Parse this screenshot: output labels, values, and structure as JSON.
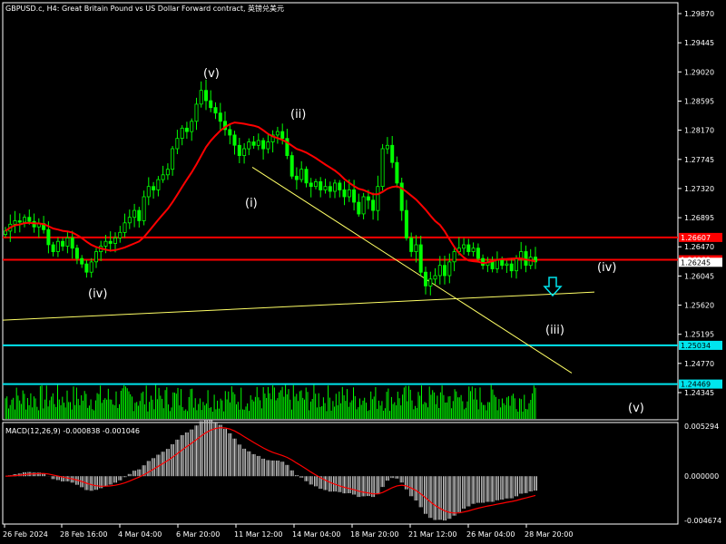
{
  "chart_title": "GBPUSD.c, H4:  Great Britain Pound vs US Dollar Forward contract, 英镑兑美元",
  "macd_label": "MACD(12,26,9)",
  "macd_values": "-0.000838 -0.001046",
  "colors": {
    "background": "#000000",
    "up_candle": "#00ff00",
    "down_candle": "#00ff00",
    "ma_line": "#ff0000",
    "resistance_line": "#ff0000",
    "support_line": "#00e5ee",
    "trend_line": "#ffff66",
    "macd_hist": "#c0c0c0",
    "macd_signal": "#ff0000",
    "axis_frame": "#ffffff",
    "arrow": "#00e5ee"
  },
  "chart_data": {
    "type": "candlestick",
    "symbol": "GBPUSD.c",
    "timeframe": "H4",
    "y_ticks": [
      "1.29870",
      "1.29445",
      "1.29020",
      "1.28595",
      "1.28170",
      "1.27745",
      "1.27320",
      "1.26895",
      "1.26470",
      "1.26045",
      "1.25620",
      "1.25195",
      "1.24770",
      "1.24345"
    ],
    "ylim": [
      1.2412,
      1.299
    ],
    "x_ticks": [
      "26 Feb 2024",
      "28 Feb 16:00",
      "4 Mar 04:00",
      "6 Mar 20:00",
      "11 Mar 12:00",
      "14 Mar 04:00",
      "18 Mar 20:00",
      "21 Mar 12:00",
      "26 Mar 04:00",
      "28 Mar 20:00"
    ],
    "horizontal_levels": [
      {
        "value": "1.26607",
        "price": 1.26607,
        "type": "resistance"
      },
      {
        "value": "1.26282",
        "price": 1.26282,
        "type": "resistance"
      },
      {
        "value": "1.25034",
        "price": 1.25034,
        "type": "support"
      },
      {
        "value": "1.24469",
        "price": 1.24469,
        "type": "support"
      }
    ],
    "current_price_label": "1.26245",
    "wave_labels": [
      "(v)",
      "(ii)",
      "(i)",
      "(iv)",
      "(iv)",
      "(iii)",
      "(v)"
    ],
    "close": [
      1.267,
      1.268,
      1.2685,
      1.2683,
      1.269,
      1.2684,
      1.2676,
      1.2681,
      1.2672,
      1.265,
      1.264,
      1.2655,
      1.2648,
      1.266,
      1.2645,
      1.263,
      1.2622,
      1.261,
      1.2625,
      1.264,
      1.2648,
      1.2655,
      1.2652,
      1.266,
      1.2668,
      1.2682,
      1.269,
      1.27,
      1.2685,
      1.272,
      1.2735,
      1.273,
      1.2745,
      1.2752,
      1.276,
      1.279,
      1.2805,
      1.282,
      1.2815,
      1.283,
      1.2855,
      1.2875,
      1.286,
      1.285,
      1.2842,
      1.283,
      1.2818,
      1.281,
      1.2795,
      1.278,
      1.279,
      1.28,
      1.2795,
      1.2802,
      1.279,
      1.28,
      1.281,
      1.2815,
      1.2805,
      1.278,
      1.275,
      1.2745,
      1.276,
      1.274,
      1.2735,
      1.2742,
      1.273,
      1.2735,
      1.2728,
      1.274,
      1.273,
      1.272,
      1.273,
      1.2712,
      1.2695,
      1.272,
      1.2715,
      1.27,
      1.2735,
      1.279,
      1.2795,
      1.277,
      1.274,
      1.27,
      1.266,
      1.264,
      1.265,
      1.261,
      1.259,
      1.26,
      1.2605,
      1.262,
      1.2605,
      1.2625,
      1.264,
      1.2645,
      1.265,
      1.264,
      1.2645,
      1.263,
      1.262,
      1.2625,
      1.2615,
      1.2628,
      1.262,
      1.2622,
      1.2612,
      1.263,
      1.264,
      1.262,
      1.2632,
      1.2625
    ],
    "macd_ylim": [
      -0.0049,
      0.0056
    ],
    "macd_ticks": [
      "0.005294",
      "0.000000",
      "-0.004674"
    ],
    "macd_last": -0.000838,
    "signal_last": -0.001046
  }
}
